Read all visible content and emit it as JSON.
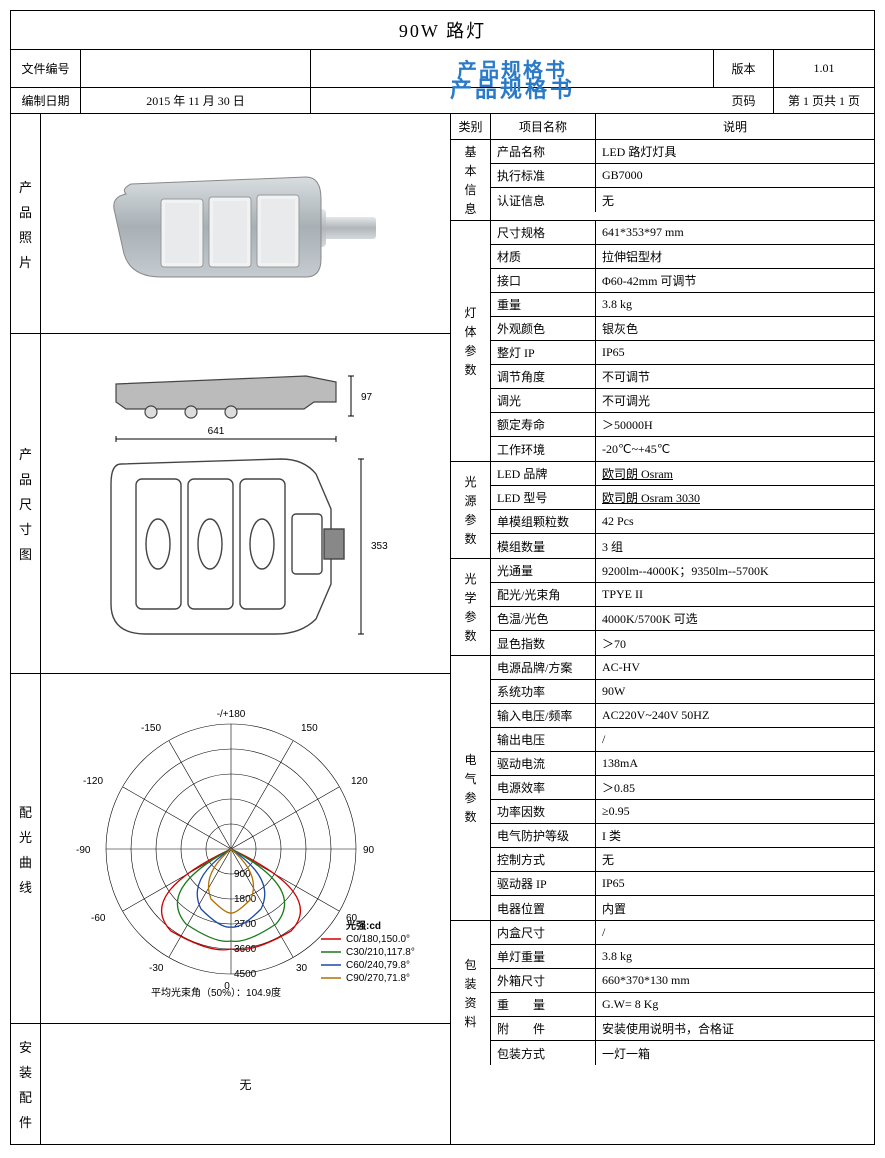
{
  "title": "90W 路灯",
  "doc_title": "产品规格书",
  "header": {
    "file_no_label": "文件编号",
    "file_no": "",
    "version_label": "版本",
    "version": "1.01",
    "date_label": "编制日期",
    "date": "2015 年 11 月 30 日",
    "page_label": "页码",
    "page": "第 1 页共 1 页"
  },
  "left_sections": {
    "photo": "产品照片",
    "dims": "产品尺寸图",
    "polar": "配光曲线",
    "install": "安装配件",
    "install_content": "无"
  },
  "dims": {
    "width": "641",
    "depth": "353",
    "height": "97"
  },
  "polar": {
    "caption": "平均光束角（50%）：104.9度",
    "legend_title": "光强:cd",
    "rings": [
      "900",
      "1800",
      "2700",
      "3600",
      "4500"
    ],
    "angles": [
      "150",
      "120",
      "90",
      "60",
      "30",
      "0",
      "-30",
      "-60",
      "-90",
      "-120",
      "-150",
      "-/+180"
    ],
    "legend": [
      {
        "label": "C0/180,150.0°",
        "color": "#d00000"
      },
      {
        "label": "C30/210,117.8°",
        "color": "#1a7a1a"
      },
      {
        "label": "C60/240,79.8°",
        "color": "#1a4aa8"
      },
      {
        "label": "C90/270,71.8°",
        "color": "#b07000"
      }
    ]
  },
  "spec_header": {
    "cat": "类别",
    "item": "项目名称",
    "desc": "说明"
  },
  "groups": [
    {
      "label": "基本信息",
      "rows": [
        {
          "n": "产品名称",
          "v": "LED 路灯灯具"
        },
        {
          "n": "执行标准",
          "v": "GB7000"
        },
        {
          "n": "认证信息",
          "v": "无"
        }
      ]
    },
    {
      "label": "灯体参数",
      "rows": [
        {
          "n": "尺寸规格",
          "v": "641*353*97 mm"
        },
        {
          "n": "材质",
          "v": "拉伸铝型材"
        },
        {
          "n": "接口",
          "v": "Φ60-42mm 可调节"
        },
        {
          "n": "重量",
          "v": "3.8 kg"
        },
        {
          "n": "外观颜色",
          "v": "银灰色"
        },
        {
          "n": "整灯 IP",
          "v": "IP65"
        },
        {
          "n": "调节角度",
          "v": "不可调节"
        },
        {
          "n": "调光",
          "v": "不可调光"
        },
        {
          "n": "额定寿命",
          "v": "＞50000H"
        },
        {
          "n": "工作环境",
          "v": "-20℃~+45℃"
        }
      ]
    },
    {
      "label": "光源参数",
      "rows": [
        {
          "n": "LED 品牌",
          "v": "欧司朗 Osram",
          "u": true
        },
        {
          "n": "LED 型号",
          "v": "欧司朗 Osram  3030",
          "u": true
        },
        {
          "n": "单模组颗粒数",
          "v": "42 Pcs"
        },
        {
          "n": "模组数量",
          "v": "3 组"
        }
      ]
    },
    {
      "label": "光学参数",
      "rows": [
        {
          "n": "光通量",
          "v": "9200lm--4000K；9350lm--5700K"
        },
        {
          "n": "配光/光束角",
          "v": "TPYE II"
        },
        {
          "n": "色温/光色",
          "v": "4000K/5700K 可选"
        },
        {
          "n": "显色指数",
          "v": "＞70"
        }
      ]
    },
    {
      "label": "电气参数",
      "rows": [
        {
          "n": "电源品牌/方案",
          "v": "AC-HV"
        },
        {
          "n": "系统功率",
          "v": "90W"
        },
        {
          "n": "输入电压/频率",
          "v": "AC220V~240V 50HZ"
        },
        {
          "n": "输出电压",
          "v": "/"
        },
        {
          "n": "驱动电流",
          "v": "138mA"
        },
        {
          "n": "电源效率",
          "v": "＞0.85"
        },
        {
          "n": "功率因数",
          "v": "≥0.95"
        },
        {
          "n": "电气防护等级",
          "v": "I 类"
        },
        {
          "n": "控制方式",
          "v": "无"
        },
        {
          "n": "驱动器 IP",
          "v": "IP65"
        },
        {
          "n": "电器位置",
          "v": "内置"
        }
      ]
    },
    {
      "label": "包装资料",
      "rows": [
        {
          "n": "内盒尺寸",
          "v": "/"
        },
        {
          "n": "单灯重量",
          "v": "3.8 kg"
        },
        {
          "n": "外箱尺寸",
          "v": "660*370*130 mm"
        },
        {
          "n": "重　　量",
          "v": "G.W= 8 Kg"
        },
        {
          "n": "附　　件",
          "v": "安装使用说明书，合格证"
        },
        {
          "n": "包装方式",
          "v": "一灯一箱"
        }
      ]
    }
  ]
}
